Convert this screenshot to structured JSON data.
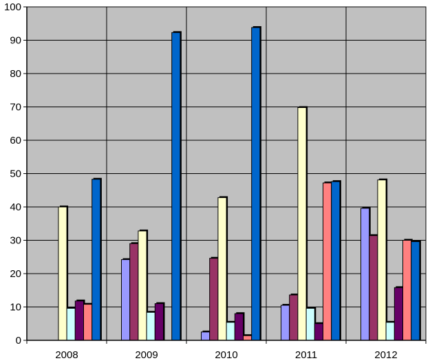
{
  "chart_data": {
    "type": "bar",
    "title": "",
    "xlabel": "",
    "ylabel": "",
    "categories": [
      "2008",
      "2009",
      "2010",
      "2011",
      "2012"
    ],
    "ylim": [
      0,
      100
    ],
    "yticks": [
      "0",
      "10",
      "20",
      "30",
      "40",
      "50",
      "60",
      "70",
      "80",
      "90",
      "100"
    ],
    "grid": true,
    "legend": "none",
    "plot_background": "#c0c0c0",
    "series": [
      {
        "color": "#9999ff",
        "values": [
          0,
          24.2,
          2.5,
          10.5,
          39.6
        ]
      },
      {
        "color": "#993366",
        "values": [
          0,
          29,
          24.6,
          13.6,
          31.4
        ]
      },
      {
        "color": "#ffffcc",
        "values": [
          40,
          32.8,
          42.8,
          69.8,
          48.1
        ]
      },
      {
        "color": "#ccffff",
        "values": [
          9.6,
          8.4,
          5.4,
          9.6,
          5.4
        ]
      },
      {
        "color": "#660066",
        "values": [
          11.8,
          11,
          8,
          5,
          15.8
        ]
      },
      {
        "color": "#ff8080",
        "values": [
          10.8,
          0,
          1.4,
          47.2,
          30
        ]
      },
      {
        "color": "#0066cc",
        "values": [
          48.3,
          92.3,
          93.8,
          47.6,
          29.6
        ]
      }
    ]
  }
}
